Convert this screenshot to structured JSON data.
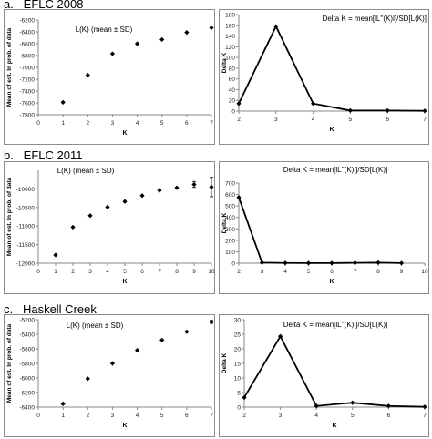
{
  "sections": [
    {
      "label": "a.   EFLC 2008"
    },
    {
      "label": "b.   EFLC 2011"
    },
    {
      "label": "c.   Haskell Creek"
    }
  ],
  "chart_data": [
    {
      "type": "scatter",
      "title": "L(K) (mean ± SD)",
      "xlabel": "K",
      "ylabel": "Mean of est. ln prob. of data",
      "xlim": [
        0,
        7
      ],
      "ylim": [
        -7800,
        -6200
      ],
      "xticks": [
        0,
        1,
        2,
        3,
        4,
        5,
        6,
        7
      ],
      "yticks": [
        -7800,
        -7600,
        -7400,
        -7200,
        -7000,
        -6800,
        -6600,
        -6400,
        -6200
      ],
      "x": [
        1,
        2,
        3,
        4,
        5,
        6,
        7
      ],
      "y": [
        -7590,
        -7130,
        -6770,
        -6600,
        -6530,
        -6410,
        -6330
      ],
      "sd": [
        0,
        0,
        0,
        0,
        0,
        0,
        0
      ],
      "grid": false,
      "marker": "diamond",
      "color": "#000000"
    },
    {
      "type": "line",
      "title": "Delta K = mean[lL''(K)l]/SD[L(K)]",
      "xlabel": "K",
      "ylabel": "Delta K",
      "xlim": [
        2,
        7
      ],
      "ylim": [
        0,
        180
      ],
      "xticks": [
        2,
        3,
        4,
        5,
        6,
        7
      ],
      "yticks": [
        0,
        20,
        40,
        60,
        80,
        100,
        120,
        140,
        160,
        180
      ],
      "x": [
        2,
        3,
        4,
        5,
        6,
        7
      ],
      "y": [
        14,
        158,
        14,
        1,
        1,
        0.5
      ],
      "grid": false,
      "marker": "diamond",
      "color": "#000000"
    },
    {
      "type": "scatter",
      "title": "L(K) (mean ± SD)",
      "xlabel": "K",
      "ylabel": "Mean of est. ln prob. of data",
      "xlim": [
        0,
        10
      ],
      "ylim": [
        -12000,
        -9500
      ],
      "xticks": [
        0,
        1,
        2,
        3,
        4,
        5,
        6,
        7,
        8,
        9,
        10
      ],
      "yticks": [
        -12000,
        -11500,
        -11000,
        -10500,
        -10000
      ],
      "x": [
        1,
        2,
        3,
        4,
        5,
        6,
        7,
        8,
        9,
        10
      ],
      "y": [
        -11780,
        -11030,
        -10720,
        -10490,
        -10340,
        -10180,
        -10040,
        -9970,
        -9880,
        -9950
      ],
      "sd": [
        0,
        0,
        0,
        0,
        0,
        0,
        0,
        0,
        80,
        260
      ],
      "grid": false,
      "marker": "diamond",
      "color": "#000000"
    },
    {
      "type": "line",
      "title": "Delta K = mean[lL''(K)l]/SD[L(K)]",
      "xlabel": "K",
      "ylabel": "Delta K",
      "xlim": [
        2,
        10
      ],
      "ylim": [
        0,
        700
      ],
      "xticks": [
        2,
        3,
        4,
        5,
        6,
        7,
        8,
        9,
        10
      ],
      "yticks": [
        0,
        100,
        200,
        300,
        400,
        500,
        600,
        700
      ],
      "x": [
        2,
        3,
        4,
        5,
        6,
        7,
        8,
        9
      ],
      "y": [
        575,
        5,
        2,
        1,
        1,
        3,
        5,
        1
      ],
      "grid": false,
      "marker": "diamond",
      "color": "#000000"
    },
    {
      "type": "scatter",
      "title": "L(K) (mean ± SD)",
      "xlabel": "K",
      "ylabel": "Mean of est. ln prob. of data",
      "xlim": [
        0,
        7
      ],
      "ylim": [
        -6400,
        -5200
      ],
      "xticks": [
        0,
        1,
        2,
        3,
        4,
        5,
        6,
        7
      ],
      "yticks": [
        -6400,
        -6200,
        -6000,
        -5800,
        -5600,
        -5400,
        -5200
      ],
      "ytick_labels": [
        "-6400",
        "-6200",
        "-6000",
        "-5800",
        "-5600",
        "-5400",
        "-5200"
      ],
      "x": [
        1,
        2,
        3,
        4,
        5,
        6,
        7
      ],
      "y": [
        -6355,
        -6010,
        -5800,
        -5620,
        -5480,
        -5365,
        -5230
      ],
      "sd": [
        0,
        0,
        0,
        0,
        0,
        0,
        20
      ],
      "grid": false,
      "marker": "diamond",
      "color": "#000000"
    },
    {
      "type": "line",
      "title": "Delta K = mean[lL''(K)l]/SD[L(K)]",
      "xlabel": "K",
      "ylabel": "Delta K",
      "xlim": [
        2,
        7
      ],
      "ylim": [
        0,
        30
      ],
      "xticks": [
        2,
        3,
        4,
        5,
        6,
        7
      ],
      "yticks": [
        0,
        5,
        10,
        15,
        20,
        25,
        30
      ],
      "x": [
        2,
        3,
        4,
        5,
        6,
        7
      ],
      "y": [
        3.3,
        24.3,
        0.4,
        1.5,
        0.4,
        0.1
      ],
      "grid": false,
      "marker": "diamond",
      "color": "#000000"
    }
  ]
}
